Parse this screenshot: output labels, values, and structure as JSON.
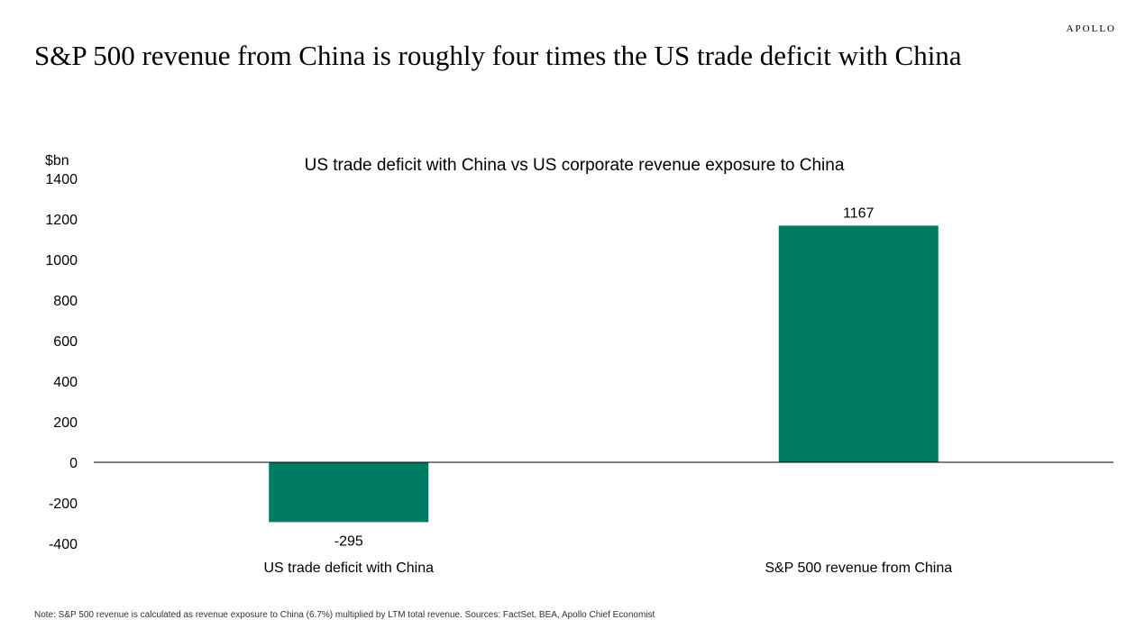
{
  "brand": "APOLLO",
  "headline": "S&P 500 revenue from China is roughly four times the US trade deficit with China",
  "footnote": "Note: S&P 500 revenue is calculated as revenue exposure to China (6.7%) multiplied by LTM total revenue. Sources: FactSet, BEA, Apollo Chief Economist",
  "colors": {
    "bar": "#007b63",
    "axis": "#000000"
  },
  "chart_data": {
    "type": "bar",
    "title": "US trade deficit with China vs US corporate revenue exposure to China",
    "ylabel": "$bn",
    "xlabel": "",
    "categories": [
      "US trade deficit with China",
      "S&P 500 revenue from China"
    ],
    "values": [
      -295,
      1167
    ],
    "data_labels": [
      "-295",
      "1167"
    ],
    "ylim": [
      -400,
      1400
    ],
    "yticks": [
      1400,
      1200,
      1000,
      800,
      600,
      400,
      200,
      0,
      -200,
      -400
    ],
    "grid": false,
    "legend": "none"
  }
}
